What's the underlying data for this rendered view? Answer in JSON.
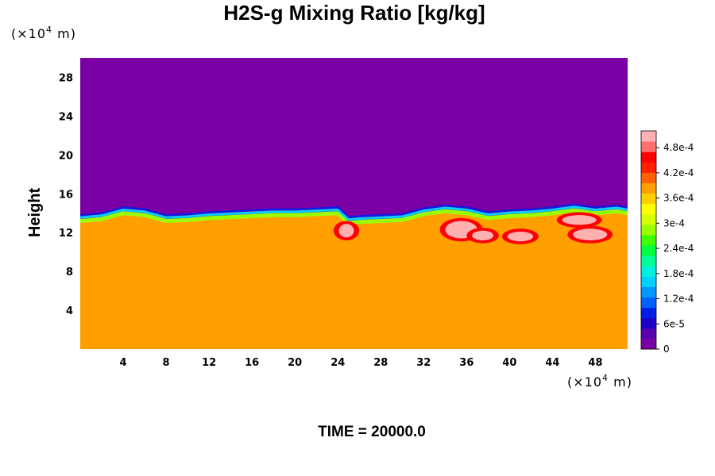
{
  "chart_data": {
    "type": "heatmap",
    "title": "H2S-g Mixing Ratio [kg/kg]",
    "ylabel": "Height",
    "x_unit_prefix": "(×10",
    "x_unit_exp": "4",
    "x_unit_suffix": " m)",
    "y_unit_prefix": "(×10",
    "y_unit_exp": "4",
    "y_unit_suffix": " m)",
    "xlim": [
      0,
      51
    ],
    "ylim": [
      0,
      30
    ],
    "x_ticks": [
      4,
      8,
      12,
      16,
      20,
      24,
      28,
      32,
      36,
      40,
      44,
      48
    ],
    "y_ticks": [
      4,
      8,
      12,
      16,
      20,
      24,
      28
    ],
    "x_tick_labels": [
      "4",
      "8",
      "12",
      "16",
      "20",
      "24",
      "28",
      "32",
      "36",
      "40",
      "44",
      "48"
    ],
    "y_tick_labels": [
      "4",
      "8",
      "12",
      "16",
      "20",
      "24",
      "28"
    ],
    "regions": {
      "upper_value": 0,
      "lower_value": 0.00038,
      "boundary_x": [
        0,
        2,
        4,
        6,
        8,
        10,
        12,
        14,
        16,
        18,
        20,
        22,
        24,
        25,
        26,
        28,
        30,
        32,
        34,
        36,
        38,
        40,
        42,
        44,
        46,
        48,
        50,
        51
      ],
      "boundary_y": [
        13.2,
        13.4,
        14.0,
        13.8,
        13.2,
        13.3,
        13.5,
        13.6,
        13.7,
        13.8,
        13.8,
        13.9,
        14.0,
        13.0,
        13.1,
        13.2,
        13.3,
        13.9,
        14.2,
        14.0,
        13.5,
        13.7,
        13.8,
        14.0,
        14.3,
        14.0,
        14.2,
        14.0
      ],
      "high_patches": [
        {
          "x": 24.8,
          "y": 12.2,
          "rx": 0.7,
          "ry": 0.7,
          "value": 0.0005
        },
        {
          "x": 35.5,
          "y": 12.3,
          "rx": 1.5,
          "ry": 0.9,
          "value": 0.00052
        },
        {
          "x": 37.5,
          "y": 11.7,
          "rx": 1.0,
          "ry": 0.5,
          "value": 0.0005
        },
        {
          "x": 41.0,
          "y": 11.6,
          "rx": 1.2,
          "ry": 0.5,
          "value": 0.0005
        },
        {
          "x": 46.5,
          "y": 13.3,
          "rx": 1.6,
          "ry": 0.5,
          "value": 0.0005
        },
        {
          "x": 47.5,
          "y": 11.8,
          "rx": 1.6,
          "ry": 0.6,
          "value": 0.0005
        }
      ]
    },
    "colorbar": {
      "min": 0,
      "max": 0.00052,
      "tick_values": [
        0,
        6e-05,
        0.00012,
        0.00018,
        0.00024,
        0.0003,
        0.00036,
        0.00042,
        0.00048
      ],
      "tick_labels": [
        "0",
        "6e-5",
        "1.2e-4",
        "1.8e-4",
        "2.4e-4",
        "3e-4",
        "3.6e-4",
        "4.2e-4",
        "4.8e-4"
      ],
      "colors": [
        "#7a00a6",
        "#5a00b0",
        "#1a00c8",
        "#0020e8",
        "#0060ff",
        "#0098ff",
        "#00d0ff",
        "#00f0e0",
        "#00ff99",
        "#00ff40",
        "#40ff00",
        "#9aff00",
        "#d8ff00",
        "#ffff00",
        "#ffd000",
        "#ffa000",
        "#ff6000",
        "#ff2000",
        "#ff0000",
        "#ff7070",
        "#ffb0b0"
      ]
    },
    "footer_label": "TIME = 20000.0"
  }
}
